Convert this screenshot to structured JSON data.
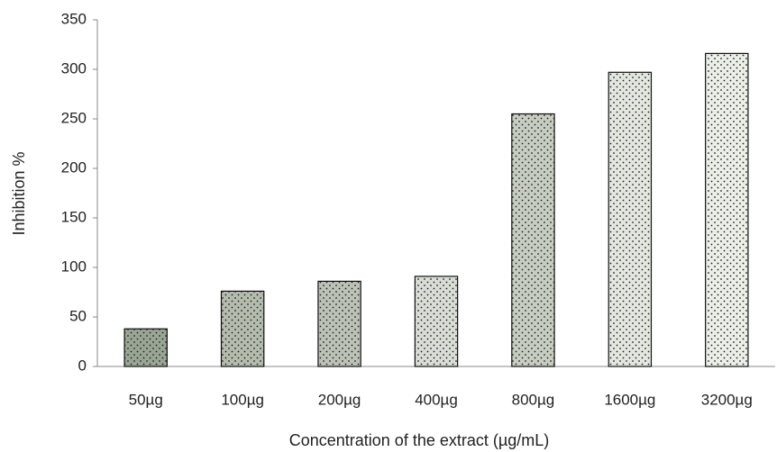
{
  "chart_data": {
    "type": "bar",
    "x_label": "Concentration of the extract (µg/mL)",
    "y_label": "Inhibition %",
    "categories": [
      "50µg",
      "100µg",
      "200µg",
      "400µg",
      "800µg",
      "1600µg",
      "3200µg"
    ],
    "values": [
      38,
      76,
      86,
      91,
      255,
      297,
      316
    ],
    "colors": [
      "#9aa694",
      "#b4bcae",
      "#bcc2b6",
      "#d9ddd5",
      "#c8cdc2",
      "#e4e7e0",
      "#eceee8"
    ],
    "ylim": [
      0,
      350
    ],
    "yticks": [
      0,
      50,
      100,
      150,
      200,
      250,
      300,
      350
    ],
    "grid": false
  }
}
